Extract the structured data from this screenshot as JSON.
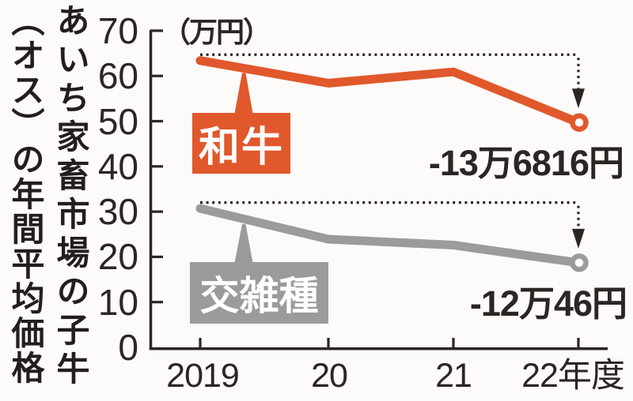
{
  "canvas": {
    "background": "#fcfbf9"
  },
  "title": {
    "text": "あいち家畜市場の子牛（オス）の年間平均価格",
    "line1": "あいち家畜市場の子牛",
    "line2": "（オス）の年間平均価格"
  },
  "unit_label": "（万円）",
  "colors": {
    "ink": "#2b2523",
    "wagyu_orange": "#e0582c",
    "crossbreed_gray": "#9b9b9b",
    "marker_fill": "#ffffff",
    "background": "#fcfbf9"
  },
  "chart_data": {
    "type": "line",
    "title": "あいち家畜市場の子牛（オス）の年間平均価格",
    "ylabel_unit": "（万円）",
    "ylim": [
      0,
      70
    ],
    "y_ticks": [
      0,
      10,
      20,
      30,
      40,
      50,
      60,
      70
    ],
    "x_tick_labels": [
      "2019",
      "20",
      "21",
      "22年度"
    ],
    "categories": [
      "2019",
      "20",
      "21",
      "22年度"
    ],
    "grid": false,
    "legend_position": "callout-boxes-on-lines",
    "series": [
      {
        "name": "和牛",
        "color": "#e0582c",
        "values": [
          63.4,
          58.4,
          60.9,
          49.7
        ],
        "end_marker": "open-circle",
        "annotation": "-13万6816円"
      },
      {
        "name": "交雑種",
        "color": "#9b9b9b",
        "values": [
          30.7,
          23.9,
          22.6,
          18.7
        ],
        "end_marker": "open-circle",
        "annotation": "-12万46円"
      }
    ]
  }
}
